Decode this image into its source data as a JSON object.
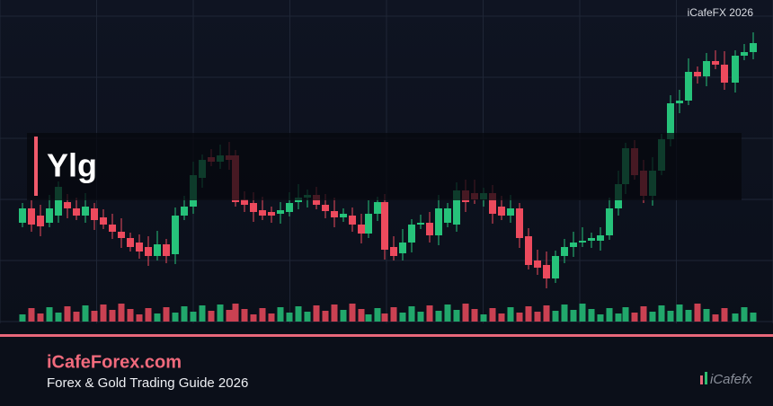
{
  "header": {
    "badge": "iCafeFX 2026",
    "title": "Ylg"
  },
  "footer": {
    "site": "iCafeForex.com",
    "tagline": "Forex & Gold Trading Guide 2026",
    "logo": "iCafefx"
  }
}
